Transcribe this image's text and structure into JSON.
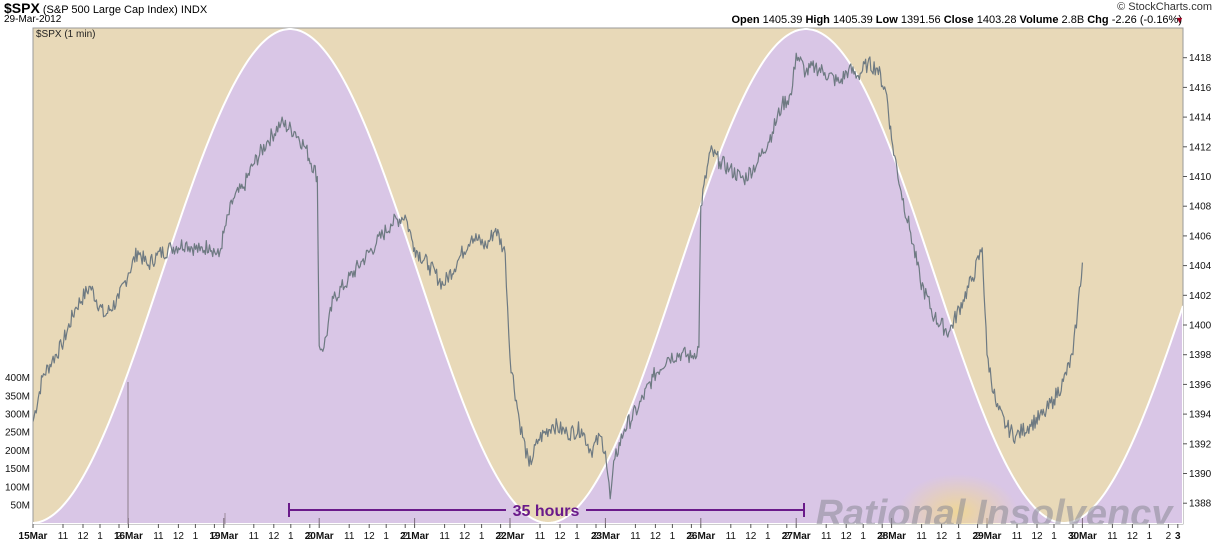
{
  "header": {
    "symbol": "$SPX",
    "description": "(S&P 500 Large Cap Index)",
    "exchange": "INDX",
    "date": "29-Mar-2012",
    "copyright": "© StockCharts.com",
    "open_label": "Open",
    "open": "1405.39",
    "high_label": "High",
    "high": "1405.39",
    "low_label": "Low",
    "low": "1391.56",
    "close_label": "Close",
    "close": "1403.28",
    "volume_label": "Volume",
    "volume": "2.8B",
    "chg_label": "Chg",
    "chg": "-2.26 (-0.16%)",
    "chg_arrow": "▼"
  },
  "chart_data": {
    "type": "line",
    "series_label": "$SPX (1 min)",
    "ylim": [
      1386.6,
      1420.0
    ],
    "y_ticks": [
      1388,
      1390,
      1392,
      1394,
      1396,
      1398,
      1400,
      1402,
      1404,
      1406,
      1408,
      1410,
      1412,
      1414,
      1416,
      1418
    ],
    "volume_ticks": [
      "50M",
      "100M",
      "150M",
      "200M",
      "250M",
      "300M",
      "350M",
      "400M"
    ],
    "x_labels": [
      "15Mar",
      "11",
      "12",
      "1",
      "2",
      "16Mar",
      "11",
      "12",
      "1",
      "2",
      "19Mar",
      "11",
      "12",
      "1",
      "2",
      "20Mar",
      "11",
      "12",
      "1",
      "2",
      "21Mar",
      "11",
      "12",
      "1",
      "2",
      "22Mar",
      "11",
      "12",
      "1",
      "2",
      "23Mar",
      "11",
      "12",
      "1",
      "2",
      "26Mar",
      "11",
      "12",
      "1",
      "2",
      "27Mar",
      "11",
      "12",
      "1",
      "2",
      "28Mar",
      "11",
      "12",
      "1",
      "2",
      "29Mar",
      "11",
      "12",
      "1",
      "2",
      "30Mar",
      "11",
      "12",
      "1",
      "2",
      "3"
    ],
    "day_boundaries": [
      "15Mar",
      "16Mar",
      "19Mar",
      "20Mar",
      "21Mar",
      "22Mar",
      "23Mar",
      "26Mar",
      "27Mar",
      "28Mar",
      "29Mar",
      "30Mar"
    ],
    "price_points": [
      [
        0.0,
        1393.5
      ],
      [
        0.1,
        1396.5
      ],
      [
        0.2,
        1397.6
      ],
      [
        0.3,
        1398.6
      ],
      [
        0.45,
        1401.2
      ],
      [
        0.6,
        1402.6
      ],
      [
        0.75,
        1400.6
      ],
      [
        0.9,
        1401.8
      ],
      [
        1.0,
        1403.5
      ],
      [
        1.1,
        1405.0
      ],
      [
        1.2,
        1404.0
      ],
      [
        1.3,
        1404.7
      ],
      [
        1.45,
        1405.2
      ],
      [
        1.6,
        1405.5
      ],
      [
        1.75,
        1405.0
      ],
      [
        1.85,
        1405.4
      ],
      [
        1.95,
        1404.6
      ],
      [
        2.0,
        1406.2
      ],
      [
        2.1,
        1408.5
      ],
      [
        2.2,
        1409.2
      ],
      [
        2.3,
        1410.7
      ],
      [
        2.45,
        1412.3
      ],
      [
        2.6,
        1413.6
      ],
      [
        2.75,
        1413.0
      ],
      [
        2.85,
        1412.0
      ],
      [
        2.98,
        1410.0
      ],
      [
        3.0,
        1398.6
      ],
      [
        3.05,
        1398.5
      ],
      [
        3.15,
        1401.8
      ],
      [
        3.3,
        1403.0
      ],
      [
        3.45,
        1404.3
      ],
      [
        3.6,
        1405.5
      ],
      [
        3.75,
        1406.8
      ],
      [
        3.9,
        1407.4
      ],
      [
        3.97,
        1405.8
      ],
      [
        4.0,
        1405.2
      ],
      [
        4.15,
        1404.0
      ],
      [
        4.3,
        1402.7
      ],
      [
        4.45,
        1404.3
      ],
      [
        4.6,
        1406.0
      ],
      [
        4.75,
        1405.3
      ],
      [
        4.85,
        1406.5
      ],
      [
        4.95,
        1404.8
      ],
      [
        5.0,
        1397.8
      ],
      [
        5.1,
        1393.5
      ],
      [
        5.2,
        1390.5
      ],
      [
        5.3,
        1392.3
      ],
      [
        5.45,
        1393.3
      ],
      [
        5.6,
        1392.7
      ],
      [
        5.75,
        1393.0
      ],
      [
        5.85,
        1391.5
      ],
      [
        5.95,
        1392.5
      ],
      [
        6.0,
        1391.5
      ],
      [
        6.05,
        1388.3
      ],
      [
        6.1,
        1391.0
      ],
      [
        6.2,
        1393.0
      ],
      [
        6.35,
        1394.5
      ],
      [
        6.5,
        1396.5
      ],
      [
        6.65,
        1397.8
      ],
      [
        6.8,
        1398.1
      ],
      [
        6.9,
        1397.8
      ],
      [
        6.98,
        1398.5
      ],
      [
        7.0,
        1408.0
      ],
      [
        7.1,
        1411.7
      ],
      [
        7.2,
        1411.0
      ],
      [
        7.3,
        1410.5
      ],
      [
        7.45,
        1409.8
      ],
      [
        7.6,
        1411.0
      ],
      [
        7.75,
        1413.0
      ],
      [
        7.85,
        1414.8
      ],
      [
        7.95,
        1415.5
      ],
      [
        8.0,
        1418.3
      ],
      [
        8.1,
        1417.0
      ],
      [
        8.2,
        1417.4
      ],
      [
        8.3,
        1417.0
      ],
      [
        8.45,
        1416.3
      ],
      [
        8.55,
        1417.2
      ],
      [
        8.65,
        1416.8
      ],
      [
        8.75,
        1417.6
      ],
      [
        8.85,
        1417.3
      ],
      [
        8.95,
        1415.5
      ],
      [
        9.0,
        1412.5
      ],
      [
        9.1,
        1409.0
      ],
      [
        9.2,
        1406.2
      ],
      [
        9.3,
        1403.0
      ],
      [
        9.45,
        1400.5
      ],
      [
        9.6,
        1399.5
      ],
      [
        9.75,
        1401.7
      ],
      [
        9.85,
        1403.2
      ],
      [
        9.95,
        1405.2
      ],
      [
        10.0,
        1398.0
      ],
      [
        10.1,
        1394.5
      ],
      [
        10.2,
        1393.2
      ],
      [
        10.3,
        1392.5
      ],
      [
        10.45,
        1393.3
      ],
      [
        10.6,
        1394.0
      ],
      [
        10.7,
        1395.0
      ],
      [
        10.8,
        1396.2
      ],
      [
        10.9,
        1398.0
      ],
      [
        10.95,
        1401.0
      ],
      [
        11.0,
        1404.2
      ]
    ],
    "sine_period_hours": 35,
    "annotation": "35 hours",
    "watermark": "Rational Insolvency"
  },
  "colors": {
    "background": "#e8d9b8",
    "wave_fill": "#d8c5e8",
    "price_line": "#6e7a82",
    "annotation": "#6a1a8a"
  }
}
